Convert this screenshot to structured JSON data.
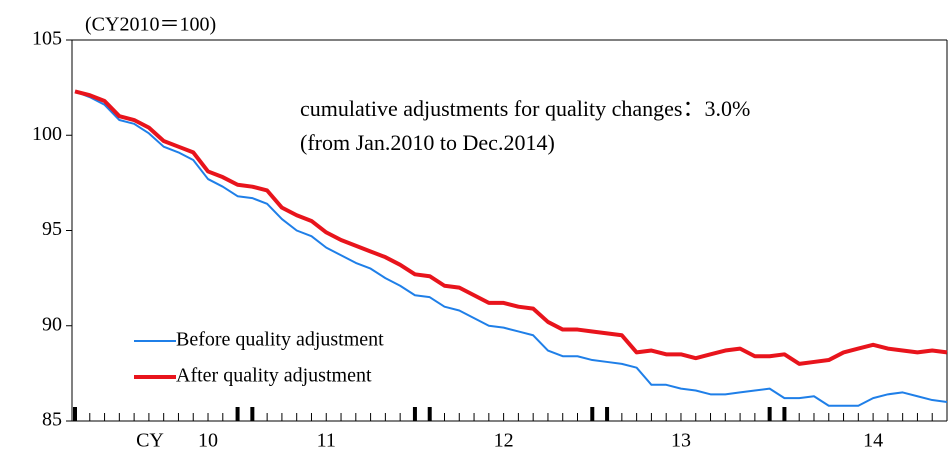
{
  "chart_data": {
    "type": "line",
    "unit_note": "(CY2010＝100)",
    "annotations": [
      "cumulative adjustments for quality changes：3.0%",
      "(from Jan.2010 to Dec.2014)"
    ],
    "x_prefix": "CY",
    "categories": [
      null,
      null,
      null,
      null,
      null,
      null,
      null,
      null,
      null,
      "10",
      null,
      null,
      null,
      null,
      null,
      null,
      null,
      "11",
      null,
      null,
      null,
      null,
      null,
      null,
      null,
      null,
      null,
      null,
      null,
      "12",
      null,
      null,
      null,
      null,
      null,
      null,
      null,
      null,
      null,
      null,
      null,
      "13",
      null,
      null,
      null,
      null,
      null,
      null,
      null,
      null,
      null,
      null,
      null,
      null,
      "14",
      null,
      null,
      null,
      null,
      null
    ],
    "series": [
      {
        "name": "Before quality adjustment",
        "color": "#1f7fe8",
        "width": 2,
        "values": [
          102.3,
          102.0,
          101.6,
          100.8,
          100.6,
          100.1,
          99.4,
          99.1,
          98.7,
          97.7,
          97.3,
          96.8,
          96.7,
          96.4,
          95.6,
          95.0,
          94.7,
          94.1,
          93.7,
          93.3,
          93.0,
          92.5,
          92.1,
          91.6,
          91.5,
          91.0,
          90.8,
          90.4,
          90.0,
          89.9,
          89.7,
          89.5,
          88.7,
          88.4,
          88.4,
          88.2,
          88.1,
          88.0,
          87.8,
          86.9,
          86.9,
          86.7,
          86.6,
          86.4,
          86.4,
          86.5,
          86.6,
          86.7,
          86.2,
          86.2,
          86.3,
          85.8,
          85.8,
          85.8,
          86.2,
          86.4,
          86.5,
          86.3,
          86.1,
          86.0
        ]
      },
      {
        "name": "After quality adjustment",
        "color": "#e8141c",
        "width": 4,
        "values": [
          102.3,
          102.1,
          101.8,
          101.0,
          100.8,
          100.4,
          99.7,
          99.4,
          99.1,
          98.1,
          97.8,
          97.4,
          97.3,
          97.1,
          96.2,
          95.8,
          95.5,
          94.9,
          94.5,
          94.2,
          93.9,
          93.6,
          93.2,
          92.7,
          92.6,
          92.1,
          92.0,
          91.6,
          91.2,
          91.2,
          91.0,
          90.9,
          90.2,
          89.8,
          89.8,
          89.7,
          89.6,
          89.5,
          88.6,
          88.7,
          88.5,
          88.5,
          88.3,
          88.5,
          88.7,
          88.8,
          88.4,
          88.4,
          88.5,
          88.0,
          88.1,
          88.2,
          88.6,
          88.8,
          89.0,
          88.8,
          88.7,
          88.6,
          88.7,
          88.6
        ]
      }
    ],
    "ylim": [
      85,
      105
    ],
    "yticks": [
      85,
      90,
      95,
      100,
      105
    ]
  }
}
